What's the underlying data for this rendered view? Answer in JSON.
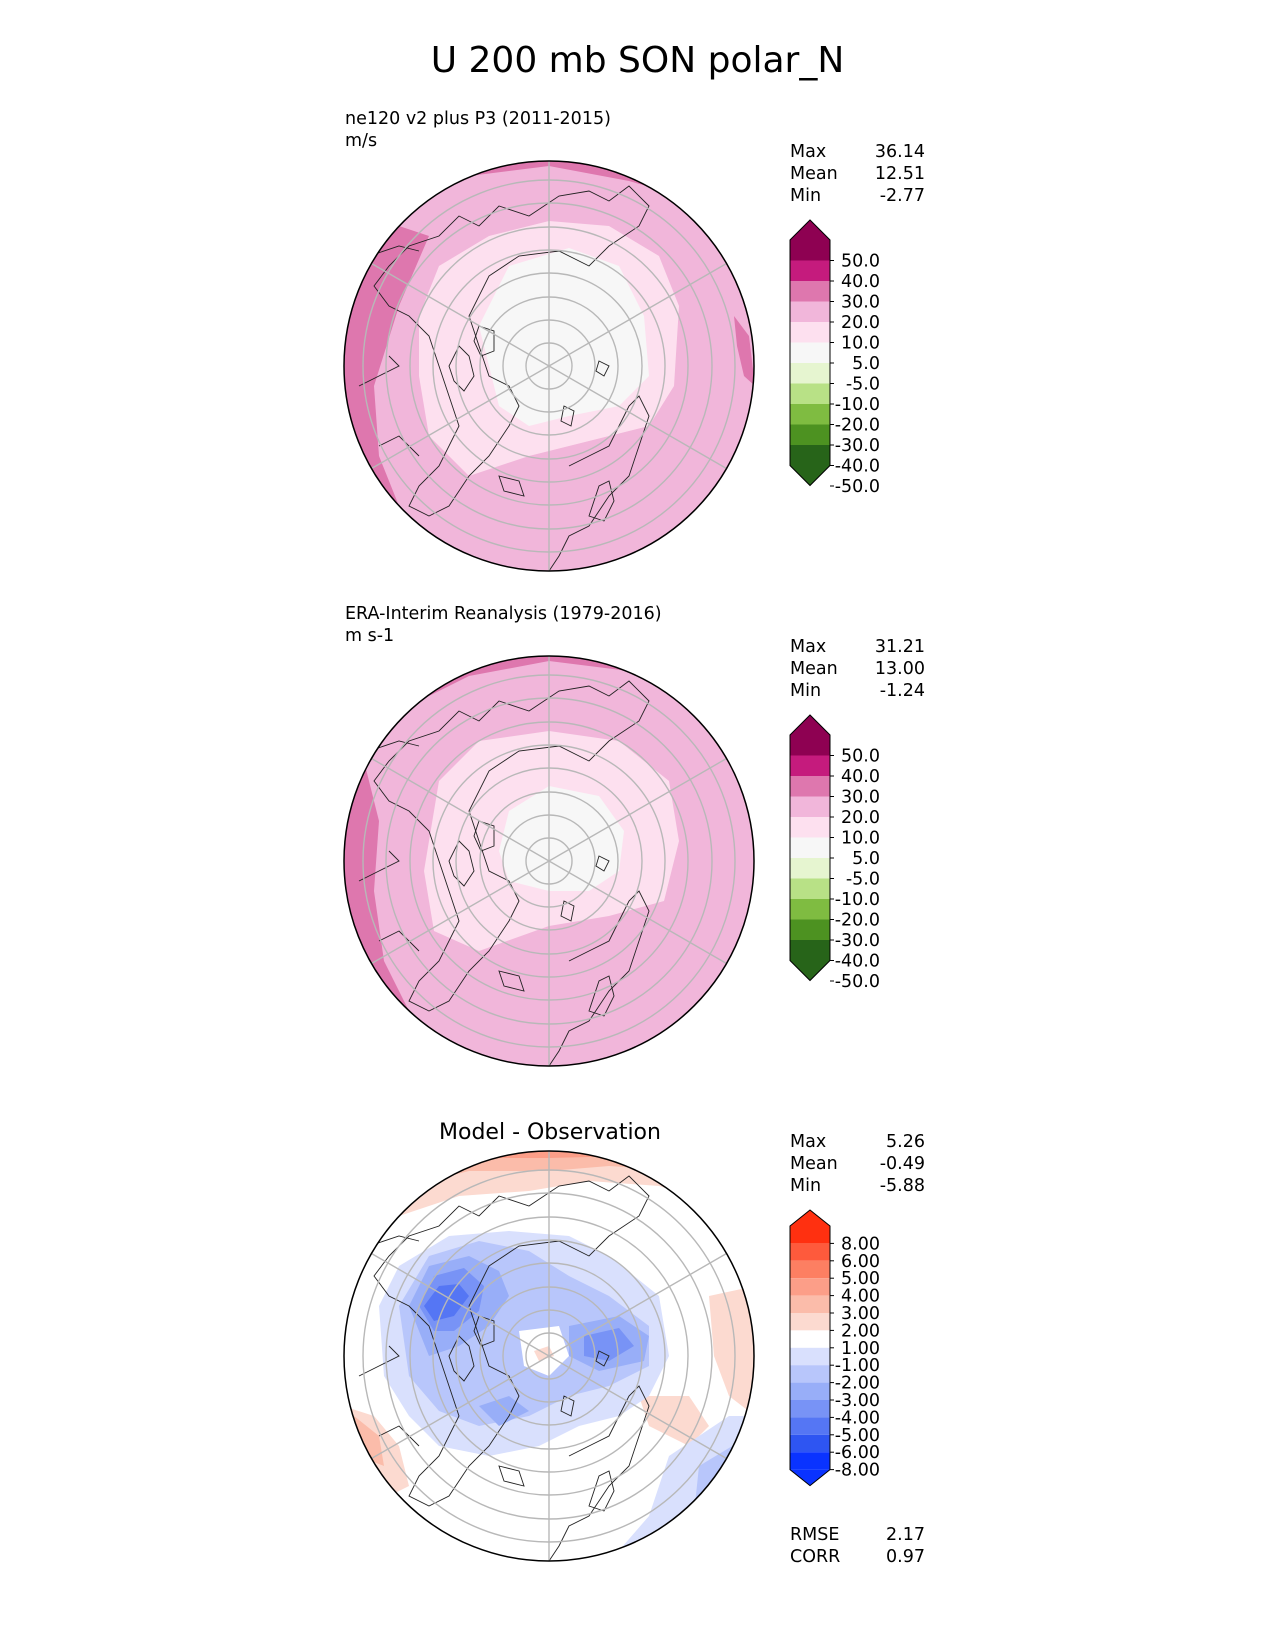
{
  "figure": {
    "title": "U 200 mb SON polar_N"
  },
  "panels": [
    {
      "title_line1": "ne120 v2 plus P3 (2011-2015)",
      "title_line2": "m/s",
      "stats": [
        {
          "label": "Max",
          "value": "36.14"
        },
        {
          "label": "Mean",
          "value": "12.51"
        },
        {
          "label": "Min",
          "value": "-2.77"
        }
      ]
    },
    {
      "title_line1": "ERA-Interim Reanalysis (1979-2016)",
      "title_line2": "m s-1",
      "stats": [
        {
          "label": "Max",
          "value": "31.21"
        },
        {
          "label": "Mean",
          "value": "13.00"
        },
        {
          "label": "Min",
          "value": "-1.24"
        }
      ]
    },
    {
      "header": "Model - Observation",
      "stats": [
        {
          "label": "Max",
          "value": "5.26"
        },
        {
          "label": "Mean",
          "value": "-0.49"
        },
        {
          "label": "Min",
          "value": "-5.88"
        }
      ],
      "metrics": [
        {
          "label": "RMSE",
          "value": "2.17"
        },
        {
          "label": "CORR",
          "value": "0.97"
        }
      ]
    }
  ],
  "chart_data": [
    {
      "type": "heatmap",
      "projection": "north polar stereographic",
      "variable": "U 200 mb",
      "season": "SON",
      "units": "m/s",
      "colorbar": {
        "ticks": [
          "50.0",
          "40.0",
          "30.0",
          "20.0",
          "10.0",
          "5.0",
          "-5.0",
          "-10.0",
          "-20.0",
          "-30.0",
          "-40.0",
          "-50.0"
        ],
        "colors": [
          "#8e0152",
          "#c51b7d",
          "#de77ae",
          "#f1b6da",
          "#fde0ef",
          "#f7f7f7",
          "#e6f5d0",
          "#b8e186",
          "#7fbc41",
          "#4d9221",
          "#276419"
        ],
        "extend": "both"
      }
    },
    {
      "type": "heatmap",
      "projection": "north polar stereographic",
      "variable": "U 200 mb",
      "season": "SON",
      "units": "m s-1",
      "colorbar": {
        "ticks": [
          "50.0",
          "40.0",
          "30.0",
          "20.0",
          "10.0",
          "5.0",
          "-5.0",
          "-10.0",
          "-20.0",
          "-30.0",
          "-40.0",
          "-50.0"
        ],
        "colors": [
          "#8e0152",
          "#c51b7d",
          "#de77ae",
          "#f1b6da",
          "#fde0ef",
          "#f7f7f7",
          "#e6f5d0",
          "#b8e186",
          "#7fbc41",
          "#4d9221",
          "#276419"
        ],
        "extend": "both"
      }
    },
    {
      "type": "heatmap",
      "projection": "north polar stereographic",
      "variable": "U 200 mb difference",
      "season": "SON",
      "colorbar": {
        "ticks": [
          "8.00",
          "6.00",
          "5.00",
          "4.00",
          "3.00",
          "2.00",
          "1.00",
          "-1.00",
          "-2.00",
          "-3.00",
          "-4.00",
          "-5.00",
          "-6.00",
          "-8.00"
        ],
        "colors": [
          "#ff3010",
          "#fe5a3c",
          "#fd7f62",
          "#fc9e88",
          "#fbbcaa",
          "#fcdad0",
          "#ffffff",
          "#d9e0fd",
          "#b8c6fb",
          "#98aef8",
          "#7893f6",
          "#5576f4",
          "#2e55f2",
          "#0a33ff"
        ],
        "extend": "both"
      }
    }
  ]
}
